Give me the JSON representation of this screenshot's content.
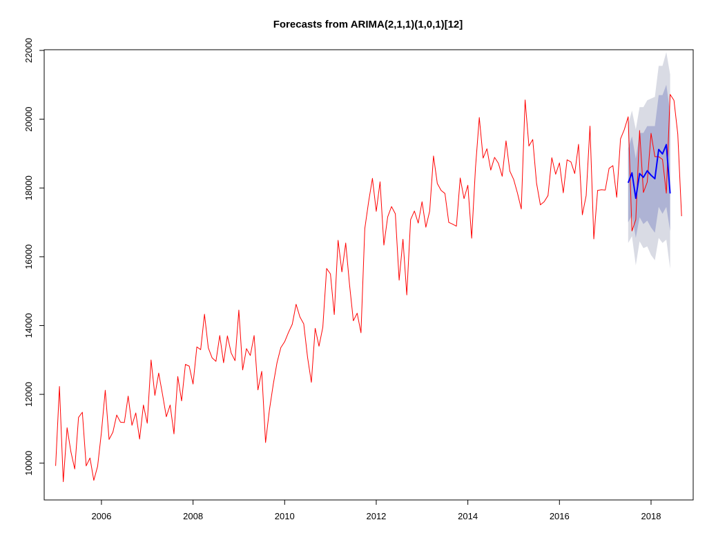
{
  "chart_data": {
    "type": "line",
    "title": "Forecasts from ARIMA(2,1,1)(1,0,1)[12]",
    "xlabel": "",
    "ylabel": "",
    "xlim": [
      2004.75,
      2018.92
    ],
    "ylim": [
      8930,
      22020
    ],
    "x_ticks": [
      2006,
      2008,
      2010,
      2012,
      2014,
      2016,
      2018
    ],
    "x_tick_labels": [
      "2006",
      "2008",
      "2010",
      "2012",
      "2014",
      "2016",
      "2018"
    ],
    "y_ticks": [
      10000,
      12000,
      14000,
      16000,
      18000,
      20000,
      22000
    ],
    "y_tick_labels": [
      "10000",
      "12000",
      "14000",
      "16000",
      "18000",
      "20000",
      "22000"
    ],
    "grid": false,
    "colors": {
      "actual": "#ff0000",
      "forecast": "#0000ff",
      "band95": "#d9dbe4",
      "band80": "#aeb3d4"
    },
    "series": [
      {
        "role": "actual",
        "start": 2005.0,
        "step": 0.0833333,
        "values": [
          9920,
          12230,
          9460,
          11030,
          10330,
          9830,
          11330,
          11480,
          9920,
          10150,
          9500,
          9910,
          10900,
          12120,
          10690,
          10900,
          11400,
          11190,
          11180,
          11950,
          11100,
          11460,
          10700,
          11690,
          11160,
          13000,
          11970,
          12620,
          12000,
          11350,
          11690,
          10850,
          12520,
          11810,
          12870,
          12820,
          12300,
          13380,
          13300,
          14330,
          13350,
          13060,
          12960,
          13710,
          12920,
          13700,
          13200,
          12980,
          14450,
          12710,
          13330,
          13130,
          13710,
          12130,
          12670,
          10600,
          11540,
          12280,
          12920,
          13360,
          13530,
          13800,
          14040,
          14620,
          14250,
          14050,
          13080,
          12350,
          13920,
          13400,
          13950,
          15660,
          15500,
          14320,
          16480,
          15560,
          16400,
          15190,
          14140,
          14360,
          13790,
          16820,
          17600,
          18280,
          17320,
          18180,
          16340,
          17160,
          17460,
          17250,
          15320,
          16510,
          14890,
          17080,
          17330,
          16980,
          17600,
          16860,
          17330,
          18930,
          18130,
          17930,
          17840,
          17000,
          16950,
          16890,
          18290,
          17690,
          18080,
          16540,
          18590,
          20050,
          18870,
          19140,
          18520,
          18890,
          18720,
          18340,
          19370,
          18490,
          18250,
          17850,
          17390,
          20560,
          19220,
          19410,
          18140,
          17510,
          17600,
          17780,
          18880,
          18400,
          18730,
          17860,
          18820,
          18760,
          18420,
          19270,
          17220,
          17780,
          19800,
          16520,
          17930,
          17950,
          17940,
          18570,
          18650,
          17730,
          19430,
          19700,
          20070,
          16750,
          17080,
          19670,
          17870,
          18170,
          19590,
          18910,
          18910,
          18830,
          17850,
          20720,
          20550,
          19570,
          17180
        ]
      },
      {
        "role": "forecast",
        "start": 2017.5,
        "step": 0.0833333,
        "values": [
          18150,
          18440,
          17700,
          18420,
          18310,
          18500,
          18370,
          18270,
          19120,
          18990,
          19260,
          17840
        ],
        "lo80": [
          17000,
          17200,
          16550,
          17150,
          16950,
          17050,
          16850,
          16700,
          17450,
          17250,
          17450,
          16750
        ],
        "hi80": [
          19150,
          19500,
          18850,
          19600,
          19600,
          19800,
          19800,
          19800,
          20700,
          20700,
          21000,
          20200
        ],
        "lo95": [
          16400,
          16600,
          15750,
          16450,
          16250,
          16300,
          16050,
          15900,
          16550,
          16400,
          16500,
          15650
        ],
        "hi95": [
          19850,
          20250,
          19700,
          20350,
          20350,
          20550,
          20600,
          20650,
          21550,
          21550,
          21950,
          21300
        ]
      }
    ]
  }
}
